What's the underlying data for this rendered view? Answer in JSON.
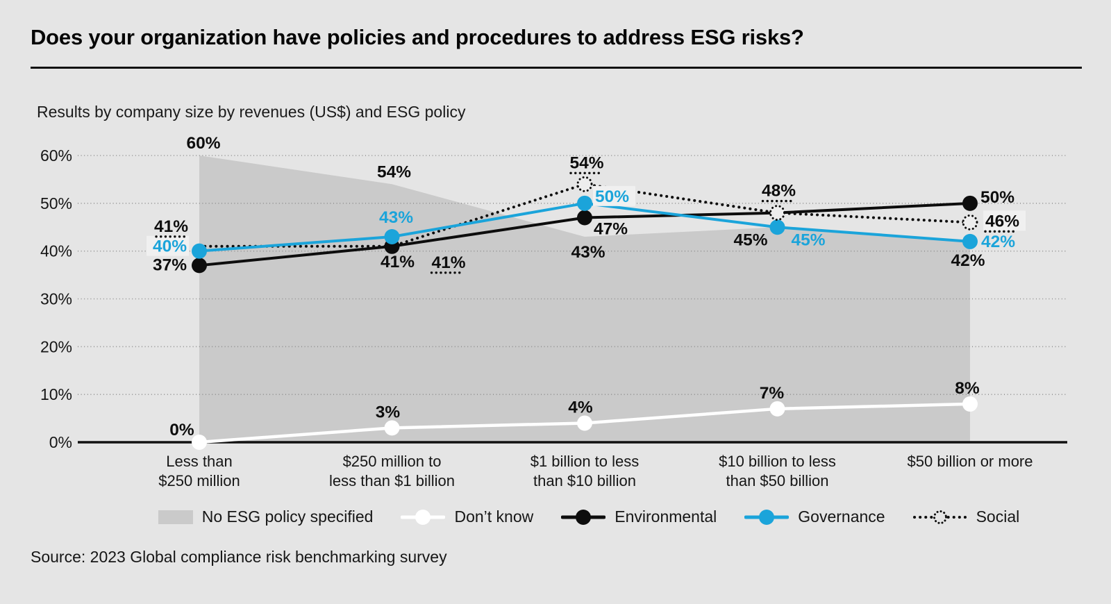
{
  "chart_data": {
    "type": "line",
    "title": "Does your organization have policies and procedures to address ESG risks?",
    "subtitle": "Results by company size by revenues (US$) and ESG policy",
    "source": "Source: 2023 Global compliance risk benchmarking survey",
    "background": "#e5e5e5",
    "grid": "dotted-horizontal",
    "legend_position": "bottom",
    "categories": [
      [
        "Less than",
        "$250 million"
      ],
      [
        "$250 million to",
        "less than $1 billion"
      ],
      [
        "$1 billion to less",
        "than $10 billion"
      ],
      [
        "$10 billion to less",
        "than $50 billion"
      ],
      [
        "$50 billion or more"
      ]
    ],
    "y_axis": {
      "min": 0,
      "max": 60,
      "step": 10,
      "tick_labels": [
        "0%",
        "10%",
        "20%",
        "30%",
        "40%",
        "50%",
        "60%"
      ]
    },
    "area_series": {
      "key": "area",
      "name": "No ESG policy specified",
      "color": "#cacaca",
      "values": [
        60,
        54,
        43,
        45,
        42
      ],
      "labels": [
        "60%",
        "54%",
        "43%",
        "45%",
        "42%"
      ]
    },
    "series": [
      {
        "key": "dontknow",
        "name": "Don’t know",
        "style": "solid",
        "color": "#ffffff",
        "label_color": "#0d0d0d",
        "values": [
          0,
          3,
          4,
          7,
          8
        ],
        "labels": [
          "0%",
          "3%",
          "4%",
          "7%",
          "8%"
        ]
      },
      {
        "key": "env",
        "name": "Environmental",
        "style": "solid",
        "color": "#0d0d0d",
        "label_color": "#0d0d0d",
        "values": [
          37,
          41,
          47,
          48,
          50
        ],
        "labels": [
          "37%",
          "41%",
          "47%",
          null,
          "50%"
        ]
      },
      {
        "key": "gov",
        "name": "Governance",
        "style": "solid",
        "color": "#1ba4da",
        "label_color": "#1ba4da",
        "values": [
          40,
          43,
          50,
          45,
          42
        ],
        "labels": [
          "40%",
          "43%",
          "50%",
          "45%",
          "42%"
        ]
      },
      {
        "key": "social",
        "name": "Social",
        "style": "dotted",
        "color": "#0d0d0d",
        "label_color": "#0d0d0d",
        "values": [
          41,
          41,
          54,
          48,
          46
        ],
        "labels": [
          "41%",
          "41%",
          "54%",
          "48%",
          "46%"
        ]
      }
    ],
    "legend_order": [
      "area",
      "dontknow",
      "env",
      "gov",
      "social"
    ]
  }
}
